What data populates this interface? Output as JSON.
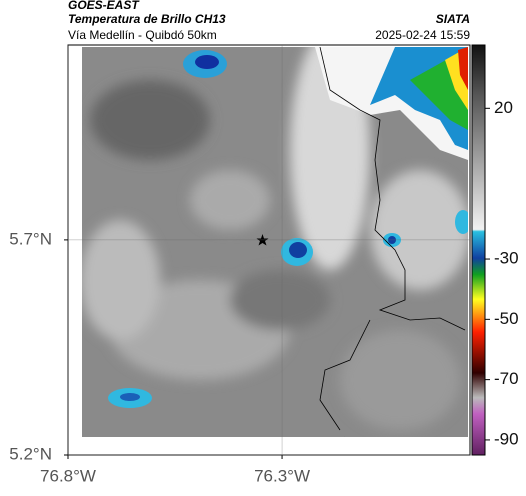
{
  "map": {
    "source": "GOES-EAST",
    "title": "Temperatura de Brillo CH13",
    "subtitle": "Vía Medellín - Quibdó 50km",
    "agency": "SIATA",
    "datetime": "2025-02-24 15:59",
    "xlim": [
      -76.8,
      -75.861
    ],
    "ylim": [
      5.2,
      6.153
    ],
    "xticks": [
      {
        "value": -76.8,
        "label": "76.8°W"
      },
      {
        "value": -76.3,
        "label": "76.3°W"
      }
    ],
    "yticks": [
      {
        "value": 5.2,
        "label": "5.2°N"
      },
      {
        "value": 5.7,
        "label": "5.7°N"
      }
    ],
    "grid": true,
    "colorbar": {
      "lim": [
        -95,
        41
      ],
      "ticks": [
        20,
        -30,
        -50,
        -70,
        -90
      ]
    }
  }
}
